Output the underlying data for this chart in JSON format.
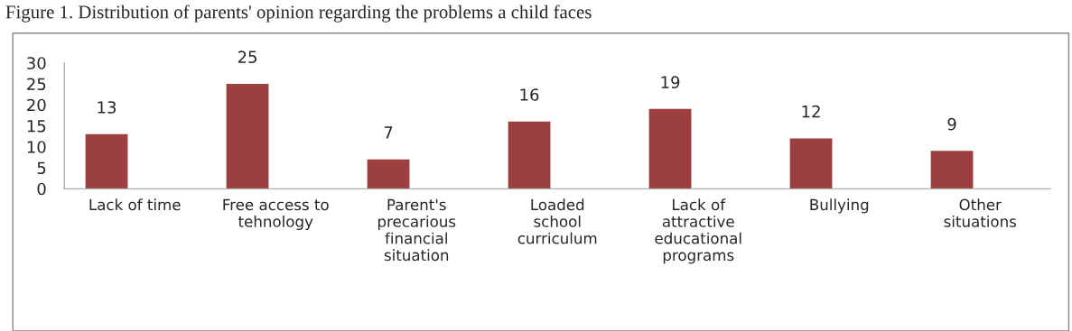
{
  "chart_data": {
    "type": "bar",
    "title": "Figure 1. Distribution of parents' opinion regarding the problems a child faces",
    "categories": [
      "Lack of time",
      "Free access to\ntehnology",
      "Parent's\nprecarious\nfinancial\nsituation",
      "Loaded\nschool\ncurriculum",
      "Lack of\nattractive\neducational\nprograms",
      "Bullying",
      "Other\nsituations"
    ],
    "values": [
      13,
      25,
      7,
      16,
      19,
      12,
      9
    ],
    "color": "#9c3f3f",
    "ylim": [
      0,
      30
    ],
    "yticks": [
      0,
      5,
      10,
      15,
      20,
      25,
      30
    ],
    "grid": false,
    "data_labels": true,
    "legend": false
  }
}
